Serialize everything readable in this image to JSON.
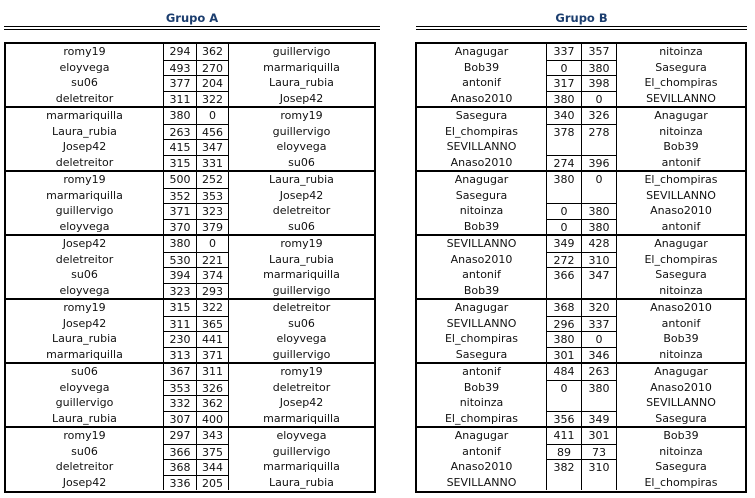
{
  "groups": [
    {
      "title": "Grupo A",
      "blocks": [
        [
          [
            "romy19",
            "294",
            "362",
            "guillervigo"
          ],
          [
            "eloyvega",
            "493",
            "270",
            "marmariquilla"
          ],
          [
            "su06",
            "377",
            "204",
            "Laura_rubia"
          ],
          [
            "deletreitor",
            "311",
            "322",
            "Josep42"
          ]
        ],
        [
          [
            "marmariquilla",
            "380",
            "0",
            "romy19"
          ],
          [
            "Laura_rubia",
            "263",
            "456",
            "guillervigo"
          ],
          [
            "Josep42",
            "415",
            "347",
            "eloyvega"
          ],
          [
            "deletreitor",
            "315",
            "331",
            "su06"
          ]
        ],
        [
          [
            "romy19",
            "500",
            "252",
            "Laura_rubia"
          ],
          [
            "marmariquilla",
            "352",
            "353",
            "Josep42"
          ],
          [
            "guillervigo",
            "371",
            "323",
            "deletreitor"
          ],
          [
            "eloyvega",
            "370",
            "379",
            "su06"
          ]
        ],
        [
          [
            "Josep42",
            "380",
            "0",
            "romy19"
          ],
          [
            "deletreitor",
            "530",
            "221",
            "Laura_rubia"
          ],
          [
            "su06",
            "394",
            "374",
            "marmariquilla"
          ],
          [
            "eloyvega",
            "323",
            "293",
            "guillervigo"
          ]
        ],
        [
          [
            "romy19",
            "315",
            "322",
            "deletreitor"
          ],
          [
            "Josep42",
            "311",
            "365",
            "su06"
          ],
          [
            "Laura_rubia",
            "230",
            "441",
            "eloyvega"
          ],
          [
            "marmariquilla",
            "313",
            "371",
            "guillervigo"
          ]
        ],
        [
          [
            "su06",
            "367",
            "311",
            "romy19"
          ],
          [
            "eloyvega",
            "353",
            "326",
            "deletreitor"
          ],
          [
            "guillervigo",
            "332",
            "362",
            "Josep42"
          ],
          [
            "Laura_rubia",
            "307",
            "400",
            "marmariquilla"
          ]
        ],
        [
          [
            "romy19",
            "297",
            "343",
            "eloyvega"
          ],
          [
            "su06",
            "366",
            "375",
            "guillervigo"
          ],
          [
            "deletreitor",
            "368",
            "344",
            "marmariquilla"
          ],
          [
            "Josep42",
            "336",
            "205",
            "Laura_rubia"
          ]
        ]
      ]
    },
    {
      "title": "Grupo B",
      "blocks": [
        [
          [
            "Anagugar",
            "337",
            "357",
            "nitoinza"
          ],
          [
            "Bob39",
            "0",
            "380",
            "Sasegura"
          ],
          [
            "antonif",
            "317",
            "398",
            "El_chompiras"
          ],
          [
            "Anaso2010",
            "380",
            "0",
            "SEVILLANNO"
          ]
        ],
        [
          [
            "Sasegura",
            "340",
            "326",
            "Anagugar"
          ],
          [
            "El_chompiras",
            "378",
            "278",
            "nitoinza"
          ],
          [
            "SEVILLANNO",
            "",
            "",
            "Bob39"
          ],
          [
            "Anaso2010",
            "274",
            "396",
            "antonif"
          ]
        ],
        [
          [
            "Anagugar",
            "380",
            "0",
            "El_chompiras"
          ],
          [
            "Sasegura",
            "",
            "",
            "SEVILLANNO"
          ],
          [
            "nitoinza",
            "0",
            "380",
            "Anaso2010"
          ],
          [
            "Bob39",
            "0",
            "380",
            "antonif"
          ]
        ],
        [
          [
            "SEVILLANNO",
            "349",
            "428",
            "Anagugar"
          ],
          [
            "Anaso2010",
            "272",
            "310",
            "El_chompiras"
          ],
          [
            "antonif",
            "366",
            "347",
            "Sasegura"
          ],
          [
            "Bob39",
            "",
            "",
            "nitoinza"
          ]
        ],
        [
          [
            "Anagugar",
            "368",
            "320",
            "Anaso2010"
          ],
          [
            "SEVILLANNO",
            "296",
            "337",
            "antonif"
          ],
          [
            "El_chompiras",
            "380",
            "0",
            "Bob39"
          ],
          [
            "Sasegura",
            "301",
            "346",
            "nitoinza"
          ]
        ],
        [
          [
            "antonif",
            "484",
            "263",
            "Anagugar"
          ],
          [
            "Bob39",
            "0",
            "380",
            "Anaso2010"
          ],
          [
            "nitoinza",
            "",
            "",
            "SEVILLANNO"
          ],
          [
            "El_chompiras",
            "356",
            "349",
            "Sasegura"
          ]
        ],
        [
          [
            "Anagugar",
            "411",
            "301",
            "Bob39"
          ],
          [
            "antonif",
            "89",
            "73",
            "nitoinza"
          ],
          [
            "Anaso2010",
            "382",
            "310",
            "Sasegura"
          ],
          [
            "SEVILLANNO",
            "",
            "",
            "El_chompiras"
          ]
        ]
      ]
    }
  ]
}
